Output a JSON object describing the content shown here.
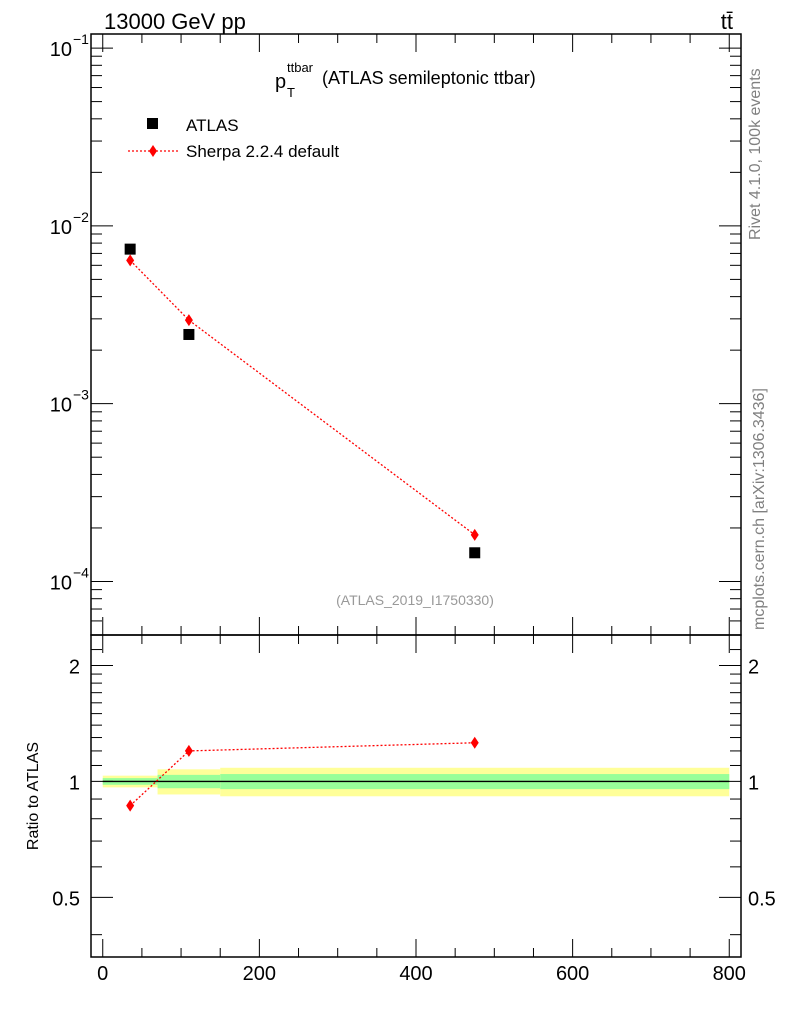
{
  "header": {
    "energy_label": "13000 GeV pp",
    "process_label": "tt̄"
  },
  "side_labels": {
    "rivet": "Rivet 4.1.0,  100k events",
    "mcplots": "mcplots.cern.ch [arXiv:1306.3436]"
  },
  "chart_data": [
    {
      "type": "scatter",
      "title_main": "p",
      "title_sup": "ttbar",
      "title_sub": "T",
      "title_rest": " (ATLAS semileptonic ttbar)",
      "analysis_label": "(ATLAS_2019_I1750330)",
      "xlabel": "",
      "ylabel": "",
      "xlim": [
        -15,
        815
      ],
      "ylim": [
        5e-05,
        0.12
      ],
      "log_y": true,
      "y_ticks": [
        {
          "value": 0.1,
          "base": "10",
          "exp": "−1"
        },
        {
          "value": 0.01,
          "base": "10",
          "exp": "−2"
        },
        {
          "value": 0.001,
          "base": "10",
          "exp": "−3"
        },
        {
          "value": 0.0001,
          "base": "10",
          "exp": "−4"
        }
      ],
      "legend_position": "top-left",
      "series": [
        {
          "name": "ATLAS",
          "marker": "square",
          "color": "#000000",
          "x": [
            35,
            110,
            475
          ],
          "y": [
            0.0074,
            0.00245,
            0.000145
          ]
        },
        {
          "name": "Sherpa 2.2.4 default",
          "marker": "diamond",
          "color": "#ff0000",
          "x": [
            35,
            110,
            475
          ],
          "y": [
            0.0064,
            0.00295,
            0.000183
          ]
        }
      ]
    },
    {
      "type": "line",
      "ylabel": "Ratio to ATLAS",
      "xlabel": "",
      "xlim": [
        -15,
        815
      ],
      "ylim": [
        0.35,
        2.4
      ],
      "log_y": true,
      "x_ticks": [
        0,
        200,
        400,
        600,
        800
      ],
      "y_ticks": [
        0.5,
        1,
        2
      ],
      "reference": 1,
      "bands": [
        {
          "x0": 0,
          "x1": 70,
          "yellow": [
            0.965,
            1.035
          ],
          "green": [
            0.98,
            1.02
          ]
        },
        {
          "x0": 70,
          "x1": 150,
          "yellow": [
            0.925,
            1.075
          ],
          "green": [
            0.96,
            1.04
          ]
        },
        {
          "x0": 150,
          "x1": 800,
          "yellow": [
            0.915,
            1.085
          ],
          "green": [
            0.955,
            1.045
          ]
        }
      ],
      "band_colors": {
        "yellow": "#ffff99",
        "green": "#99ff99"
      },
      "series": [
        {
          "name": "Sherpa 2.2.4 default",
          "color": "#ff0000",
          "x": [
            35,
            110,
            475
          ],
          "y": [
            0.865,
            1.2,
            1.26
          ]
        }
      ]
    }
  ]
}
